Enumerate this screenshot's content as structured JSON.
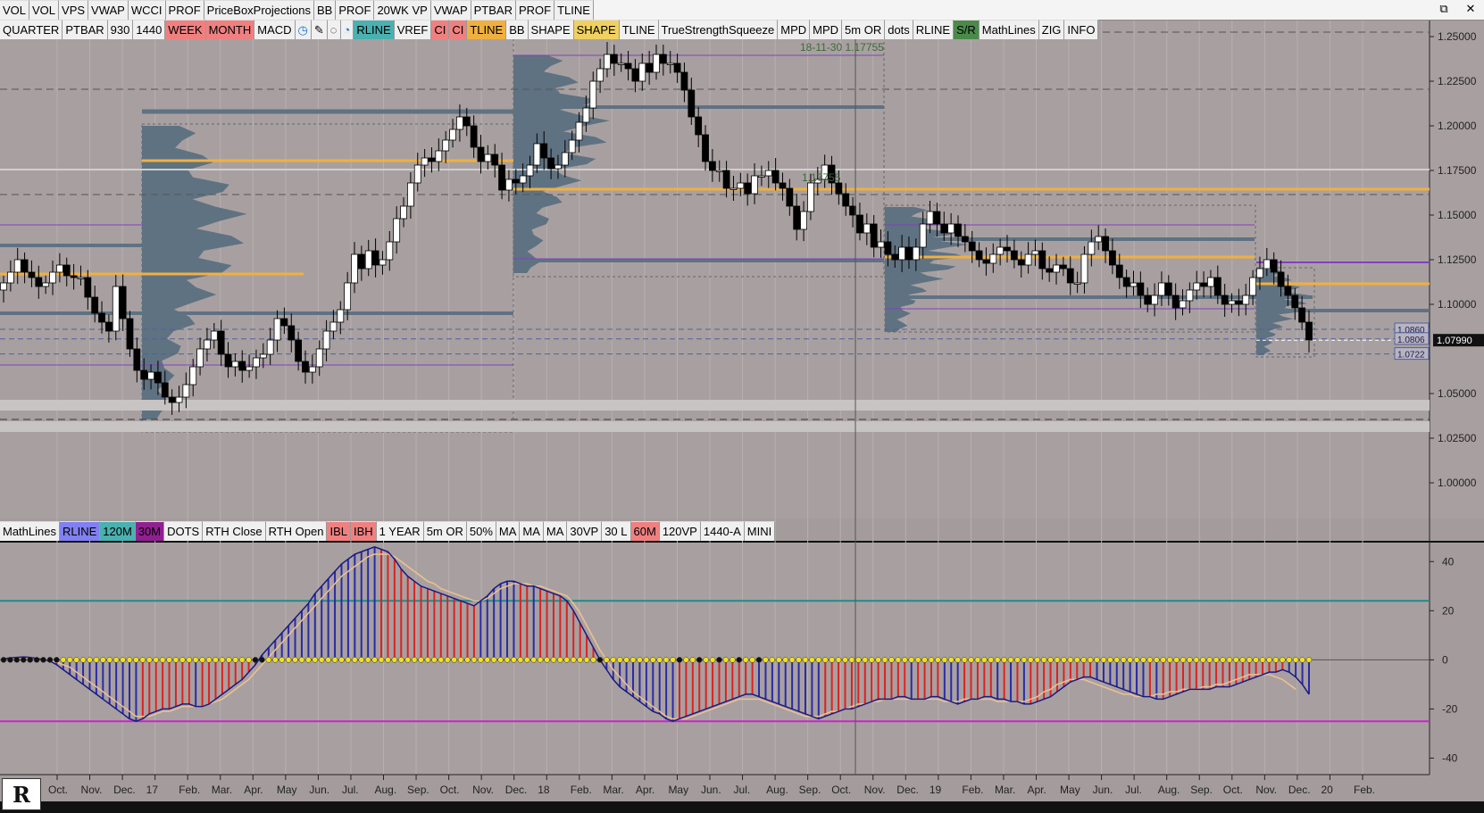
{
  "window": {
    "controls": [
      "⧉",
      "✕"
    ]
  },
  "toolbar_top": [
    {
      "label": "VOL"
    },
    {
      "label": "VOL"
    },
    {
      "label": "VPS"
    },
    {
      "label": "VWAP"
    },
    {
      "label": "WCCI"
    },
    {
      "label": "PROF"
    },
    {
      "label": "PriceBoxProjections"
    },
    {
      "label": "BB"
    },
    {
      "label": "PROF"
    },
    {
      "label": "20WK VP"
    },
    {
      "label": "VWAP"
    },
    {
      "label": "PTBAR"
    },
    {
      "label": "PROF"
    },
    {
      "label": "TLINE"
    }
  ],
  "toolbar_main": [
    {
      "label": "QUARTER",
      "bg": "#f0f0f0"
    },
    {
      "label": "PTBAR",
      "bg": "#f0f0f0"
    },
    {
      "label": "930",
      "bg": "#f0f0f0"
    },
    {
      "label": "1440",
      "bg": "#f0f0f0"
    },
    {
      "label": "WEEK",
      "bg": "#f08080"
    },
    {
      "label": "MONTH",
      "bg": "#f08080"
    },
    {
      "label": "MACD",
      "bg": "#f0f0f0"
    },
    {
      "label": "◷",
      "bg": "#f0f0f0",
      "color": "#1a6fd6"
    },
    {
      "label": "✎",
      "bg": "#f0f0f0"
    },
    {
      "label": "◌",
      "bg": "#f0f0f0"
    },
    {
      "label": "◔",
      "bg": "#f0f0f0",
      "color": "#1a6fd6"
    },
    {
      "label": "RLINE",
      "bg": "#4ab0b0"
    },
    {
      "label": "VREF",
      "bg": "#f0f0f0"
    },
    {
      "label": "CI",
      "bg": "#f08080"
    },
    {
      "label": "CI",
      "bg": "#f08080"
    },
    {
      "label": "TLINE",
      "bg": "#f0b040"
    },
    {
      "label": "BB",
      "bg": "#f0f0f0"
    },
    {
      "label": "SHAPE",
      "bg": "#f0f0f0"
    },
    {
      "label": "SHAPE",
      "bg": "#f0d060"
    },
    {
      "label": "TLINE",
      "bg": "#f0f0f0"
    },
    {
      "label": "TrueStrengthSqueeze",
      "bg": "#f0f0f0"
    },
    {
      "label": "MPD",
      "bg": "#f0f0f0"
    },
    {
      "label": "MPD",
      "bg": "#f0f0f0"
    },
    {
      "label": "5m OR",
      "bg": "#f0f0f0"
    },
    {
      "label": "dots",
      "bg": "#f0f0f0"
    },
    {
      "label": "RLINE",
      "bg": "#f0f0f0"
    },
    {
      "label": "S/R",
      "bg": "#4a8a4a"
    },
    {
      "label": "MathLines",
      "bg": "#f0f0f0"
    },
    {
      "label": "ZIG",
      "bg": "#f0f0f0"
    },
    {
      "label": "INFO",
      "bg": "#f0f0f0"
    }
  ],
  "toolbar_lower": [
    {
      "label": "MathLines",
      "bg": "#f0f0f0"
    },
    {
      "label": "RLINE",
      "bg": "#8080f0"
    },
    {
      "label": "120M",
      "bg": "#4ab0b0"
    },
    {
      "label": "30M",
      "bg": "#902090"
    },
    {
      "label": "DOTS",
      "bg": "#f0f0f0"
    },
    {
      "label": "RTH Close",
      "bg": "#f0f0f0"
    },
    {
      "label": "RTH Open",
      "bg": "#f0f0f0"
    },
    {
      "label": "IBL",
      "bg": "#f08080"
    },
    {
      "label": "IBH",
      "bg": "#f08080"
    },
    {
      "label": "1 YEAR",
      "bg": "#f0f0f0"
    },
    {
      "label": "5m OR",
      "bg": "#f0f0f0"
    },
    {
      "label": "50%",
      "bg": "#f0f0f0"
    },
    {
      "label": "MA",
      "bg": "#f0f0f0"
    },
    {
      "label": "MA",
      "bg": "#f0f0f0"
    },
    {
      "label": "MA",
      "bg": "#f0f0f0"
    },
    {
      "label": "30VP",
      "bg": "#f0f0f0"
    },
    {
      "label": "30 L",
      "bg": "#f0f0f0"
    },
    {
      "label": "60M",
      "bg": "#f08080"
    },
    {
      "label": "120VP",
      "bg": "#f0f0f0"
    },
    {
      "label": "1440-A",
      "bg": "#f0f0f0"
    },
    {
      "label": "MINI",
      "bg": "#f0f0f0"
    }
  ],
  "chart_data": [
    {
      "type": "candlestick",
      "ylim": [
        0.98,
        1.26
      ],
      "yticks": [
        "1.25000",
        "1.22500",
        "1.20000",
        "1.17500",
        "1.15000",
        "1.12500",
        "1.10000",
        "1.05000",
        "1.02500",
        "1.00000"
      ],
      "ytick_values": [
        1.25,
        1.225,
        1.2,
        1.175,
        1.15,
        1.125,
        1.1,
        1.05,
        1.025,
        1.0
      ],
      "price_labels": [
        {
          "text": "1.0860",
          "value": 1.086
        },
        {
          "text": "1.0806",
          "value": 1.0806
        },
        {
          "text": "1.0722",
          "value": 1.0722
        }
      ],
      "current_price": {
        "text": "1.07990",
        "value": 1.0799
      },
      "annotations": [
        {
          "text": "18-11-30  1.17755",
          "value": 1.2525
        },
        {
          "text": "1.17755",
          "value": 1.17755
        }
      ],
      "closes": [
        1.112,
        1.118,
        1.125,
        1.118,
        1.115,
        1.11,
        1.112,
        1.118,
        1.122,
        1.116,
        1.115,
        1.115,
        1.104,
        1.095,
        1.09,
        1.085,
        1.11,
        1.092,
        1.075,
        1.063,
        1.058,
        1.062,
        1.056,
        1.048,
        1.045,
        1.048,
        1.055,
        1.065,
        1.075,
        1.08,
        1.085,
        1.072,
        1.065,
        1.068,
        1.063,
        1.065,
        1.07,
        1.072,
        1.08,
        1.092,
        1.088,
        1.08,
        1.068,
        1.062,
        1.065,
        1.075,
        1.085,
        1.09,
        1.097,
        1.112,
        1.128,
        1.12,
        1.13,
        1.122,
        1.125,
        1.135,
        1.148,
        1.155,
        1.168,
        1.178,
        1.182,
        1.18,
        1.186,
        1.192,
        1.198,
        1.205,
        1.2,
        1.188,
        1.18,
        1.184,
        1.178,
        1.164,
        1.17,
        1.168,
        1.172,
        1.178,
        1.19,
        1.182,
        1.176,
        1.178,
        1.185,
        1.192,
        1.202,
        1.21,
        1.225,
        1.232,
        1.24,
        1.235,
        1.235,
        1.232,
        1.225,
        1.235,
        1.23,
        1.24,
        1.235,
        1.235,
        1.23,
        1.22,
        1.205,
        1.195,
        1.18,
        1.175,
        1.175,
        1.165,
        1.165,
        1.168,
        1.162,
        1.172,
        1.172,
        1.175,
        1.168,
        1.165,
        1.155,
        1.142,
        1.152,
        1.168,
        1.17,
        1.178,
        1.168,
        1.162,
        1.155,
        1.15,
        1.14,
        1.145,
        1.132,
        1.135,
        1.128,
        1.125,
        1.132,
        1.125,
        1.132,
        1.145,
        1.152,
        1.145,
        1.14,
        1.145,
        1.138,
        1.135,
        1.13,
        1.125,
        1.123,
        1.128,
        1.132,
        1.13,
        1.125,
        1.122,
        1.128,
        1.13,
        1.12,
        1.118,
        1.122,
        1.12,
        1.112,
        1.112,
        1.128,
        1.135,
        1.138,
        1.13,
        1.122,
        1.115,
        1.11,
        1.112,
        1.105,
        1.1,
        1.105,
        1.112,
        1.105,
        1.098,
        1.102,
        1.108,
        1.112,
        1.11,
        1.115,
        1.105,
        1.1,
        1.102,
        1.1,
        1.105,
        1.115,
        1.12,
        1.125,
        1.118,
        1.11,
        1.105,
        1.098,
        1.09,
        1.08
      ],
      "x_labels": [
        "Oct.",
        "Nov.",
        "Dec.",
        "17",
        "Feb.",
        "Mar.",
        "Apr.",
        "May",
        "Jun.",
        "Jul.",
        "Aug.",
        "Sep.",
        "Oct.",
        "Nov.",
        "Dec.",
        "18",
        "Feb.",
        "Mar.",
        "Apr.",
        "May",
        "Jun.",
        "Jul.",
        "Aug.",
        "Sep.",
        "Oct.",
        "Nov.",
        "Dec.",
        "19",
        "Feb.",
        "Mar.",
        "Apr.",
        "May",
        "Jun.",
        "Jul.",
        "Aug.",
        "Sep.",
        "Oct.",
        "Nov.",
        "Dec.",
        "20",
        "Feb."
      ]
    },
    {
      "type": "macd-histogram",
      "ylim": [
        -46,
        47
      ],
      "yticks": [
        "40",
        "20",
        "0",
        "-20",
        "-40"
      ],
      "ytick_values": [
        40,
        20,
        0,
        -20,
        -40
      ],
      "reference_lines": [
        24,
        0,
        -25
      ],
      "histogram": [
        0.4,
        0.8,
        1.0,
        1.2,
        1.0,
        0.6,
        0.2,
        -0.5,
        -2,
        -4,
        -6,
        -8,
        -10,
        -12,
        -14,
        -16,
        -18,
        -20,
        -22,
        -24,
        -25,
        -24,
        -22,
        -21,
        -20,
        -20,
        -19,
        -18,
        -18,
        -19,
        -19,
        -18,
        -16,
        -14,
        -12,
        -10,
        -8,
        -5,
        -2,
        2,
        5,
        8,
        11,
        14,
        17,
        20,
        23,
        27,
        30,
        33,
        36,
        39,
        41,
        43,
        44,
        45,
        46,
        45,
        44,
        41,
        37,
        34,
        32,
        30,
        29,
        28,
        27,
        26,
        25,
        24,
        23,
        22,
        24,
        26,
        29,
        31,
        32,
        32,
        31,
        30,
        30,
        29,
        28,
        27,
        26,
        24,
        20,
        15,
        10,
        5,
        0,
        -4,
        -8,
        -11,
        -13,
        -15,
        -17,
        -19,
        -21,
        -22,
        -24,
        -25,
        -24,
        -23,
        -22,
        -21,
        -20,
        -19,
        -18,
        -17,
        -16,
        -15,
        -14,
        -14,
        -15,
        -16,
        -17,
        -18,
        -19,
        -20,
        -21,
        -22,
        -23,
        -24,
        -23,
        -22,
        -21,
        -20,
        -20,
        -19,
        -18,
        -17,
        -16,
        -16,
        -16,
        -15,
        -15,
        -16,
        -16,
        -16,
        -15,
        -15,
        -16,
        -17,
        -18,
        -17,
        -16,
        -16,
        -15,
        -15,
        -16,
        -16,
        -17,
        -17,
        -18,
        -18,
        -17,
        -16,
        -15,
        -13,
        -11,
        -9,
        -8,
        -7,
        -7,
        -8,
        -9,
        -10,
        -11,
        -12,
        -13,
        -14,
        -15,
        -15,
        -16,
        -16,
        -15,
        -14,
        -13,
        -12,
        -12,
        -12,
        -12,
        -11,
        -11,
        -11,
        -10,
        -9,
        -8,
        -7,
        -6,
        -5,
        -5,
        -4,
        -5,
        -7,
        -10,
        -14
      ],
      "signal": [
        0.5,
        0.7,
        0.8,
        0.9,
        0.9,
        0.7,
        0.4,
        0,
        -1,
        -2,
        -3,
        -5,
        -7,
        -9,
        -11,
        -13,
        -15,
        -17,
        -19,
        -21,
        -23,
        -23,
        -23,
        -22,
        -21,
        -21,
        -20,
        -19,
        -19,
        -19,
        -19,
        -18,
        -17,
        -16,
        -14,
        -12,
        -10,
        -8,
        -5,
        -2,
        1,
        4,
        7,
        10,
        13,
        16,
        19,
        22,
        25,
        28,
        31,
        34,
        36,
        38,
        40,
        42,
        43,
        43,
        43,
        42,
        40,
        38,
        36,
        34,
        32,
        31,
        29,
        28,
        27,
        26,
        25,
        24,
        24,
        25,
        27,
        29,
        30,
        31,
        31,
        31,
        30,
        30,
        29,
        28,
        27,
        26,
        23,
        19,
        14,
        9,
        4,
        0,
        -4,
        -7,
        -10,
        -13,
        -15,
        -17,
        -19,
        -21,
        -23,
        -24,
        -24,
        -24,
        -23,
        -22,
        -21,
        -20,
        -19,
        -18,
        -17,
        -16,
        -16,
        -16,
        -16,
        -17,
        -18,
        -19,
        -20,
        -21,
        -22,
        -23,
        -23,
        -23,
        -22,
        -21,
        -21,
        -20,
        -19,
        -18,
        -18,
        -17,
        -17,
        -16,
        -16,
        -16,
        -16,
        -16,
        -16,
        -16,
        -16,
        -16,
        -17,
        -17,
        -17,
        -16,
        -16,
        -16,
        -16,
        -16,
        -17,
        -17,
        -17,
        -17,
        -17,
        -16,
        -15,
        -13,
        -12,
        -10,
        -9,
        -8,
        -8,
        -8,
        -9,
        -10,
        -11,
        -12,
        -13,
        -14,
        -14,
        -15,
        -15,
        -15,
        -14,
        -14,
        -13,
        -13,
        -12,
        -12,
        -12,
        -11,
        -11,
        -10,
        -10,
        -9,
        -8,
        -7,
        -6,
        -6,
        -6,
        -6,
        -7,
        -8,
        -10,
        -12
      ]
    }
  ]
}
